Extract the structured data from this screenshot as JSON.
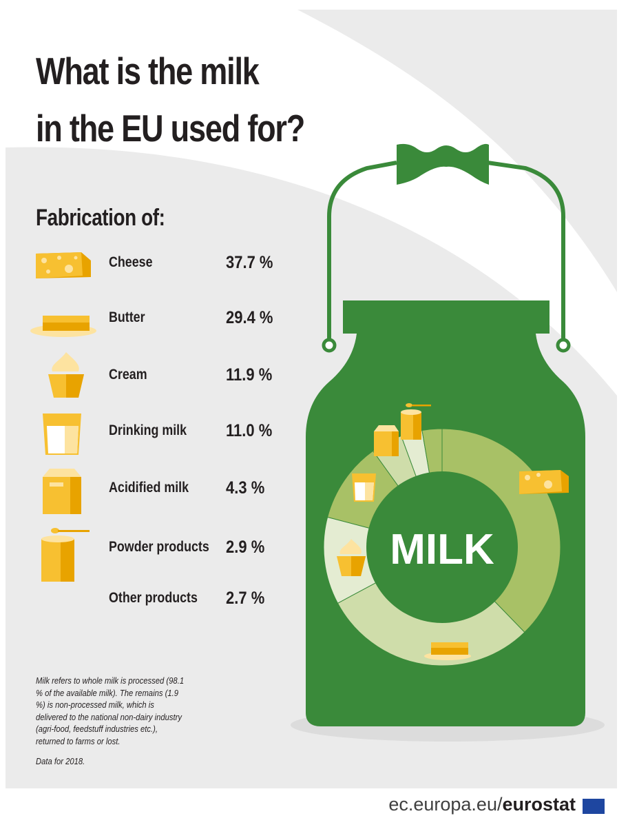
{
  "title": {
    "line1": "What is the milk",
    "line2": "in the EU used for?"
  },
  "subtitle": "Fabrication of:",
  "chart_data": {
    "type": "pie",
    "center_label": "MILK",
    "unit": "%",
    "categories": [
      "Cheese",
      "Butter",
      "Cream",
      "Drinking milk",
      "Acidified milk",
      "Powder products",
      "Other products"
    ],
    "values": [
      37.7,
      29.4,
      11.9,
      11.0,
      4.3,
      2.9,
      2.7
    ],
    "value_labels": [
      "37.7 %",
      "29.4 %",
      "11.9 %",
      "11.0 %",
      "4.3 %",
      "2.9 %",
      "2.7 %"
    ],
    "colors": [
      "#a8c166",
      "#cfddaa",
      "#e4ecd2",
      "#a8c166",
      "#cfddaa",
      "#e4ecd2",
      "#a8c166"
    ],
    "icons": [
      "cheese-icon",
      "butter-icon",
      "cream-icon",
      "drinking-milk-icon",
      "acidified-milk-icon",
      "powder-icon",
      ""
    ]
  },
  "note": {
    "text": "Milk refers to whole milk is processed (98.1 % of the available milk). The remains (1.9 %) is non-processed milk, which is delivered to the national non-dairy industry (agri-food, feedstuff industries etc.), returned to farms or lost.",
    "year": "Data for 2018."
  },
  "footer": {
    "domain": "ec.europa.eu/",
    "brand": "eurostat"
  },
  "palette": {
    "green": "#3a8a3a",
    "yellow": "#f7c031",
    "orange": "#e8a300"
  }
}
